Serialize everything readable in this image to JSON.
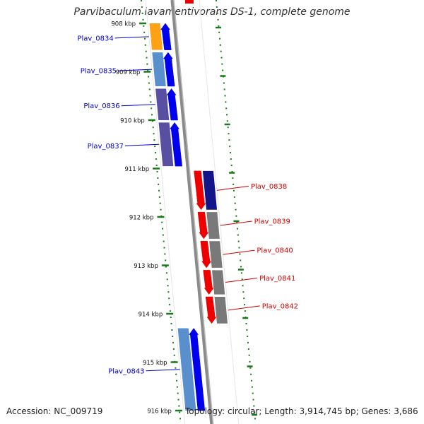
{
  "title": "Parvibaculum lavamentivorans DS-1, complete genome",
  "footer": {
    "accession_text": "Accession: NC_009719",
    "summary_text": "Topology: circular; Length: 3,914,745 bp; Genes: 3,686"
  },
  "colors": {
    "ruler_dot": "#1a7a1a",
    "backbone": "#8a8a8a",
    "label_left": "#0000cc",
    "label_right": "#d40000",
    "gene_blue": "#0000ee",
    "gene_red": "#ee0000",
    "gene_orange": "#ff9900",
    "gene_steelblue": "#4a86c8",
    "gene_slate": "#4a3f9a",
    "gene_navy": "#000080",
    "gene_gray": "#6e6e6e"
  },
  "ruler": {
    "unit": "kbp",
    "ticks": [
      {
        "kbp": 908,
        "label": "908 kbp"
      },
      {
        "kbp": 909,
        "label": "909 kbp"
      },
      {
        "kbp": 910,
        "label": "910 kbp"
      },
      {
        "kbp": 911,
        "label": "911 kbp"
      },
      {
        "kbp": 912,
        "label": "912 kbp"
      },
      {
        "kbp": 913,
        "label": "913 kbp"
      },
      {
        "kbp": 914,
        "label": "914 kbp"
      },
      {
        "kbp": 915,
        "label": "915 kbp"
      },
      {
        "kbp": 916,
        "label": "916 kbp"
      }
    ]
  },
  "genes": [
    {
      "name": "Plav_0834",
      "strand": "+",
      "start": 908.0,
      "end": 908.55,
      "arrow": "blue",
      "band": "orange"
    },
    {
      "name": "Plav_0835",
      "strand": "+",
      "start": 908.6,
      "end": 909.3,
      "arrow": "blue",
      "band": "steelblue"
    },
    {
      "name": "Plav_0836",
      "strand": "+",
      "start": 909.35,
      "end": 910.0,
      "arrow": "blue",
      "band": "slate"
    },
    {
      "name": "Plav_0837",
      "strand": "+",
      "start": 910.05,
      "end": 910.95,
      "arrow": "blue",
      "band": "slate"
    },
    {
      "name": "Plav_0838",
      "strand": "-",
      "start": 911.05,
      "end": 911.85,
      "arrow": "red",
      "band": "navy"
    },
    {
      "name": "Plav_0839",
      "strand": "-",
      "start": 911.9,
      "end": 912.45,
      "arrow": "red",
      "band": "gray"
    },
    {
      "name": "Plav_0840",
      "strand": "-",
      "start": 912.5,
      "end": 913.05,
      "arrow": "red",
      "band": "gray"
    },
    {
      "name": "Plav_0841",
      "strand": "-",
      "start": 913.1,
      "end": 913.6,
      "arrow": "red",
      "band": "gray"
    },
    {
      "name": "Plav_0842",
      "strand": "-",
      "start": 913.65,
      "end": 914.2,
      "arrow": "red",
      "band": "gray"
    },
    {
      "name": "Plav_0843",
      "strand": "+",
      "start": 914.3,
      "end": 916.0,
      "arrow": "blue",
      "band": "steelblue"
    }
  ]
}
